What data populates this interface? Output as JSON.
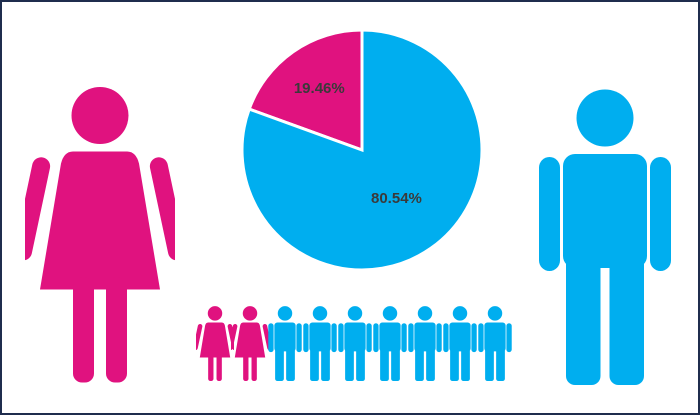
{
  "chart_data": {
    "type": "pie",
    "values": [
      19.46,
      80.54
    ],
    "value_labels": [
      "19.46%",
      "80.54%"
    ],
    "colors": [
      "#e0127f",
      "#00aeef"
    ]
  }
}
